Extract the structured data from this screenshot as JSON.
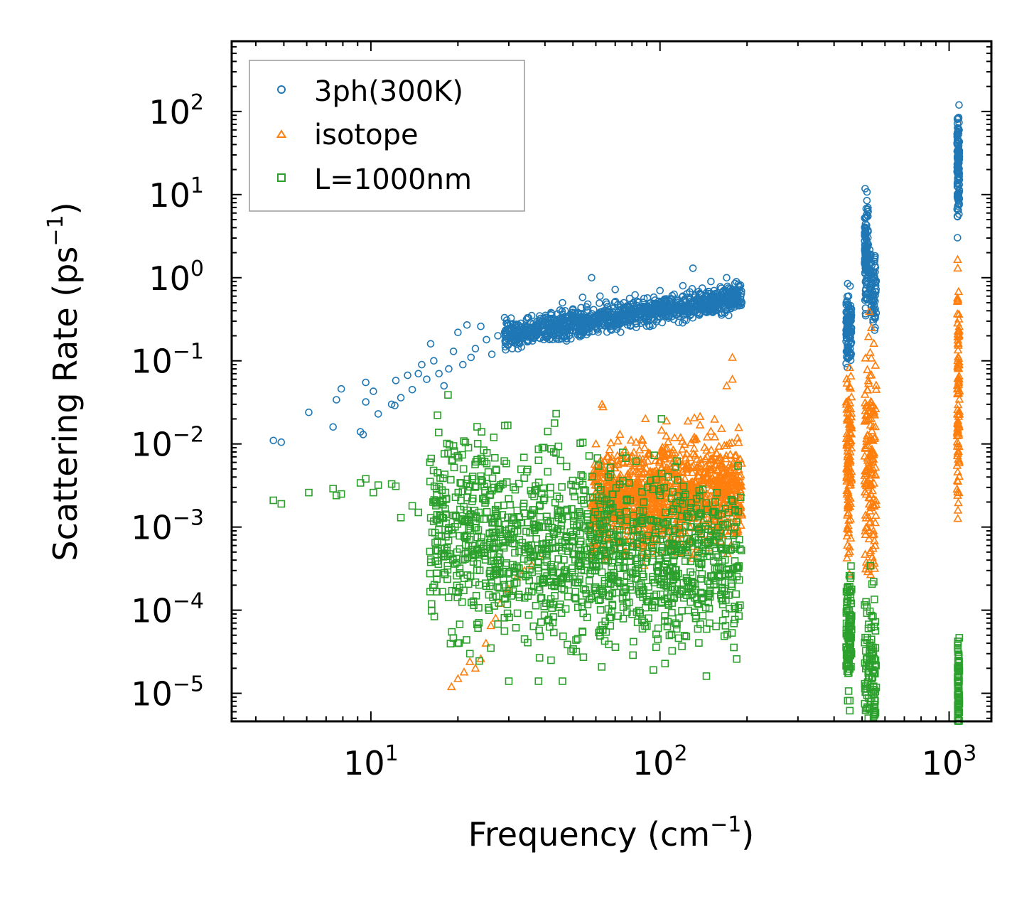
{
  "chart_data": {
    "type": "scatter",
    "title": "",
    "xlabel": "Frequency (cm",
    "xlabel_sup": "−1",
    "xlabel_close": ")",
    "ylabel": "Scattering Rate (ps",
    "ylabel_sup": "−1",
    "ylabel_close": ")",
    "xscale": "log",
    "yscale": "log",
    "xlim": [
      3.3,
      1400
    ],
    "ylim": [
      4.6e-06,
      700
    ],
    "x_ticks": [
      {
        "value": 10,
        "base": "10",
        "exp": "1"
      },
      {
        "value": 100,
        "base": "10",
        "exp": "2"
      },
      {
        "value": 1000,
        "base": "10",
        "exp": "3"
      }
    ],
    "y_ticks": [
      {
        "value": 1e-05,
        "base": "10",
        "exp": "−5"
      },
      {
        "value": 0.0001,
        "base": "10",
        "exp": "−4"
      },
      {
        "value": 0.001,
        "base": "10",
        "exp": "−3"
      },
      {
        "value": 0.01,
        "base": "10",
        "exp": "−2"
      },
      {
        "value": 0.1,
        "base": "10",
        "exp": "−1"
      },
      {
        "value": 1,
        "base": "10",
        "exp": "0"
      },
      {
        "value": 10,
        "base": "10",
        "exp": "1"
      },
      {
        "value": 100,
        "base": "10",
        "exp": "2"
      }
    ],
    "legend_position": "top-left",
    "series": [
      {
        "name": "3ph(300K)",
        "marker": "circle",
        "color": "#1f77b4",
        "points": [
          [
            4.6,
            0.011
          ],
          [
            4.9,
            0.0105
          ],
          [
            6.1,
            0.024
          ],
          [
            7.4,
            0.016
          ],
          [
            7.6,
            0.034
          ],
          [
            7.9,
            0.046
          ],
          [
            9.2,
            0.014
          ],
          [
            9.4,
            0.013
          ],
          [
            9.6,
            0.032
          ],
          [
            9.6,
            0.055
          ],
          [
            10.2,
            0.043
          ],
          [
            10.6,
            0.023
          ],
          [
            11.8,
            0.03
          ],
          [
            12.1,
            0.029
          ],
          [
            12.2,
            0.058
          ],
          [
            12.7,
            0.036
          ],
          [
            13.4,
            0.067
          ],
          [
            13.9,
            0.045
          ],
          [
            14.6,
            0.07
          ],
          [
            15.0,
            0.09
          ],
          [
            15.6,
            0.06
          ],
          [
            16.1,
            0.16
          ],
          [
            16.5,
            0.1
          ],
          [
            17.2,
            0.07
          ],
          [
            17.9,
            0.05
          ],
          [
            18.6,
            0.08
          ],
          [
            19.3,
            0.13
          ],
          [
            20.0,
            0.22
          ],
          [
            20.8,
            0.09
          ],
          [
            21.5,
            0.27
          ],
          [
            22.2,
            0.11
          ],
          [
            23.0,
            0.14
          ],
          [
            24.0,
            0.26
          ],
          [
            25.1,
            0.18
          ],
          [
            26.2,
            0.12
          ],
          [
            27.5,
            0.2
          ],
          [
            29.0,
            0.33
          ],
          [
            31.0,
            0.25
          ],
          [
            33.5,
            0.2
          ],
          [
            36.0,
            0.35
          ],
          [
            39.0,
            0.3
          ],
          [
            42.0,
            0.38
          ],
          [
            46.0,
            0.5
          ],
          [
            50.0,
            0.42
          ],
          [
            54.0,
            0.58
          ],
          [
            58.0,
            1.0
          ],
          [
            62.0,
            0.6
          ],
          [
            66.0,
            0.45
          ],
          [
            70.0,
            0.72
          ],
          [
            75.0,
            0.5
          ],
          [
            82.0,
            0.62
          ],
          [
            90.0,
            0.45
          ],
          [
            100.0,
            0.7
          ],
          [
            110.0,
            0.55
          ],
          [
            120.0,
            0.8
          ],
          [
            130.0,
            1.3
          ],
          [
            140.0,
            0.75
          ],
          [
            150.0,
            0.9
          ],
          [
            160.0,
            0.6
          ],
          [
            170.0,
            1.0
          ],
          [
            180.0,
            0.65
          ],
          [
            190.0,
            0.55
          ]
        ],
        "bands": [
          {
            "x": [
              29,
              192
            ],
            "y_start": [
              0.2,
              0.6
            ],
            "y_spread": 0.32,
            "n": 1100
          },
          {
            "x": [
              440,
              460
            ],
            "y_start": [
              0.25,
              0.25
            ],
            "y_spread": 0.72,
            "n": 120
          },
          {
            "x": [
              510,
              525
            ],
            "y_start": [
              2,
              2
            ],
            "y_spread": 1.2,
            "n": 120
          },
          {
            "x": [
              530,
              560
            ],
            "y_start": [
              0.8,
              0.8
            ],
            "y_spread": 0.9,
            "n": 80
          },
          {
            "x": [
              1065,
              1085
            ],
            "y_start": [
              20,
              20
            ],
            "y_spread": 1.25,
            "n": 140
          }
        ]
      },
      {
        "name": "isotope",
        "marker": "triangle",
        "color": "#ff7f0e",
        "points": [
          [
            19.0,
            1.2e-05
          ],
          [
            20.0,
            1.5e-05
          ],
          [
            21.0,
            1.8e-05
          ],
          [
            22.0,
            2.4e-05
          ],
          [
            23.0,
            2e-05
          ],
          [
            24.0,
            2.6e-05
          ],
          [
            25.0,
            4e-05
          ],
          [
            26.0,
            6.5e-05
          ],
          [
            27.0,
            8e-05
          ],
          [
            28.0,
            0.00012
          ],
          [
            30.0,
            0.00018
          ],
          [
            32.0,
            0.00025
          ],
          [
            34.0,
            0.0003
          ],
          [
            36.0,
            0.00035
          ],
          [
            38.0,
            0.00045
          ],
          [
            63.0,
            0.03
          ],
          [
            63.5,
            0.028
          ],
          [
            60.0,
            0.01
          ],
          [
            178.0,
            0.11
          ],
          [
            178.0,
            0.06
          ],
          [
            170.0,
            0.05
          ]
        ],
        "bands": [
          {
            "x": [
              58,
              192
            ],
            "y_start": [
              0.002,
              0.003
            ],
            "y_spread": 1.25,
            "n": 1200
          },
          {
            "x": [
              440,
              460
            ],
            "y_start": [
              0.006,
              0.006
            ],
            "y_spread": 2.0,
            "n": 120
          },
          {
            "x": [
              510,
              560
            ],
            "y_start": [
              0.006,
              0.006
            ],
            "y_spread": 3.0,
            "n": 160
          },
          {
            "x": [
              1065,
              1085
            ],
            "y_start": [
              0.04,
              0.04
            ],
            "y_spread": 2.6,
            "n": 100
          }
        ]
      },
      {
        "name": "L=1000nm",
        "marker": "square",
        "color": "#2ca02c",
        "points": [
          [
            4.6,
            0.0021
          ],
          [
            4.9,
            0.0019
          ],
          [
            6.1,
            0.0026
          ],
          [
            7.4,
            0.0029
          ],
          [
            7.6,
            0.0024
          ],
          [
            7.9,
            0.0025
          ],
          [
            9.2,
            0.0034
          ],
          [
            9.6,
            0.0038
          ],
          [
            10.2,
            0.0026
          ],
          [
            10.6,
            0.0032
          ],
          [
            11.8,
            0.0033
          ],
          [
            12.2,
            0.0031
          ],
          [
            12.7,
            0.0013
          ],
          [
            13.9,
            0.0018
          ],
          [
            14.6,
            0.0015
          ],
          [
            16.0,
            0.006
          ],
          [
            17.0,
            0.0045
          ],
          [
            19.8,
            0.00026
          ],
          [
            20.3,
            0.00028
          ],
          [
            20.0,
            4e-05
          ],
          [
            22.0,
            3e-05
          ],
          [
            26.0,
            3.5e-05
          ],
          [
            30.0,
            1.4e-05
          ],
          [
            34.0,
            4.5e-05
          ],
          [
            38.0,
            1.4e-05
          ],
          [
            42.0,
            2.5e-05
          ],
          [
            46.0,
            1.4e-05
          ]
        ],
        "bands": [
          {
            "x": [
              16,
              192
            ],
            "y_start": [
              0.001,
              0.0003
            ],
            "y_spread": 2.2,
            "n": 1400
          },
          {
            "x": [
              440,
              460
            ],
            "y_start": [
              5e-05,
              5e-05
            ],
            "y_spread": 1.6,
            "n": 100
          },
          {
            "x": [
              510,
              560
            ],
            "y_start": [
              1.5e-05,
              1.5e-05
            ],
            "y_spread": 2.0,
            "n": 120
          },
          {
            "x": [
              1070,
              1085
            ],
            "y_start": [
              1e-05,
              1e-05
            ],
            "y_spread": 1.35,
            "n": 80
          }
        ]
      }
    ]
  }
}
